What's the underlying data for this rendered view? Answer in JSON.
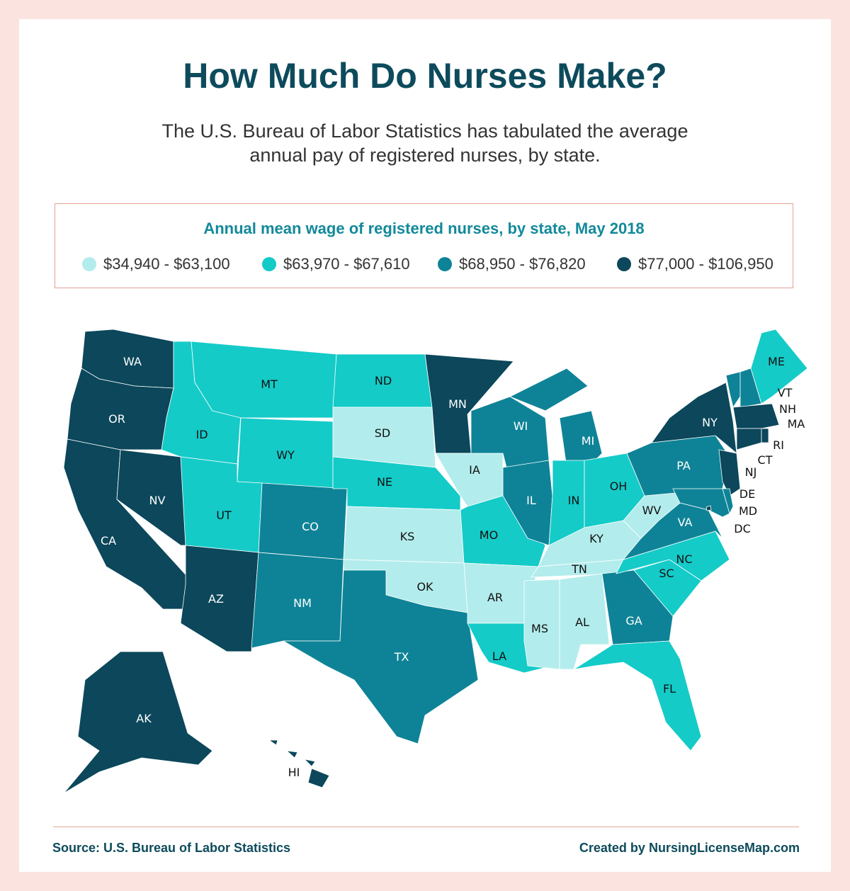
{
  "title": "How Much Do Nurses Make?",
  "subtitle_line1": "The U.S. Bureau of Labor Statistics has tabulated the average",
  "subtitle_line2": "annual pay of registered nurses, by state.",
  "legend": {
    "title": "Annual mean wage of registered nurses, by state, May 2018",
    "bins": [
      {
        "label": "$34,940 - $63,100",
        "color": "#b3ecec"
      },
      {
        "label": "$63,970 - $67,610",
        "color": "#14cbc8"
      },
      {
        "label": "$68,950 - $76,820",
        "color": "#0e8397"
      },
      {
        "label": "$77,000 - $106,950",
        "color": "#0c475b"
      }
    ]
  },
  "states": {
    "WA": 3,
    "OR": 3,
    "CA": 3,
    "NV": 3,
    "AZ": 3,
    "AK": 3,
    "HI": 3,
    "MN": 3,
    "NY": 3,
    "NJ": 3,
    "MA": 3,
    "CT": 3,
    "RI": 3,
    "DC": 3,
    "ID": 1,
    "MT": 1,
    "WY": 1,
    "UT": 1,
    "ND": 1,
    "NE": 1,
    "MO": 1,
    "IN": 1,
    "OH": 1,
    "LA": 1,
    "FL": 1,
    "NC": 1,
    "SC": 1,
    "ME": 1,
    "CO": 2,
    "NM": 2,
    "TX": 2,
    "WI": 2,
    "IL": 2,
    "MI": 2,
    "PA": 2,
    "VA": 2,
    "GA": 2,
    "VT": 2,
    "NH": 2,
    "MD": 2,
    "DE": 2,
    "SD": 0,
    "IA": 0,
    "KS": 0,
    "OK": 0,
    "AR": 0,
    "KY": 0,
    "TN": 0,
    "MS": 0,
    "AL": 0,
    "WV": 0
  },
  "source": "Source: U.S. Bureau of Labor Statistics",
  "credit": "Created by NursingLicenseMap.com"
}
